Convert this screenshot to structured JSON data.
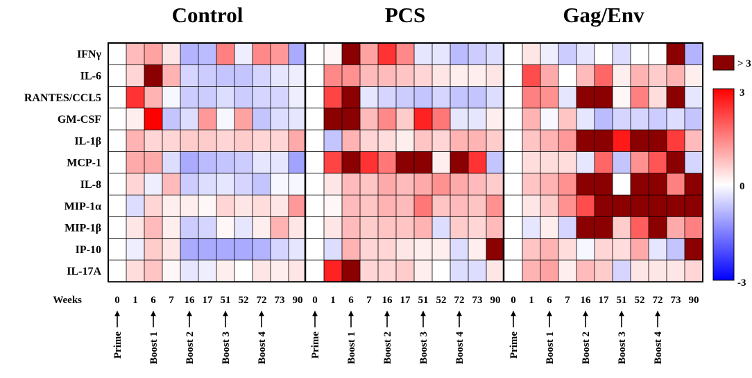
{
  "chart_data": {
    "type": "heatmap",
    "groups": [
      "Control",
      "PCS",
      "Gag/Env"
    ],
    "rows": [
      "IFNγ",
      "IL-6",
      "RANTES/CCL5",
      "GM-CSF",
      "IL-1β",
      "MCP-1",
      "IL-8",
      "MIP-1α",
      "MIP-1β",
      "IP-10",
      "IL-17A"
    ],
    "x_axis_title": "Weeks",
    "weeks": [
      "0",
      "1",
      "6",
      "7",
      "16",
      "17",
      "51",
      "52",
      "72",
      "73",
      "90"
    ],
    "events": [
      {
        "label": "Prime",
        "week": "0"
      },
      {
        "label": "Boost 1",
        "week": "6"
      },
      {
        "label": "Boost 2",
        "week": "16"
      },
      {
        "label": "Boost 3",
        "week": "51"
      },
      {
        "label": "Boost 4",
        "week": "72"
      }
    ],
    "color_scale": {
      "min": -3,
      "mid": 0,
      "max": 3,
      "low_color": "#0000ff",
      "mid_color": "#ffffff",
      "high_color": "#ff0000",
      "overflow_color": "#8b0000",
      "overflow_label": "> 3"
    },
    "legend_ticks": [
      "3",
      "0",
      "-3"
    ],
    "series": [
      {
        "name": "Control",
        "values": [
          [
            0,
            0.8,
            1.1,
            0.3,
            -0.9,
            -0.8,
            1.5,
            -0.2,
            1.4,
            1.2,
            -1.0
          ],
          [
            0,
            0.5,
            4.0,
            0.9,
            -0.5,
            -0.6,
            -0.7,
            -0.7,
            -0.5,
            -0.3,
            -0.2
          ],
          [
            0,
            2.4,
            0.9,
            -0.1,
            -0.6,
            -0.6,
            -0.4,
            -0.6,
            -0.5,
            -0.5,
            -0.2
          ],
          [
            0,
            0.2,
            3.0,
            -0.7,
            -0.4,
            1.2,
            -0.1,
            1.1,
            -0.7,
            -0.4,
            -0.3
          ],
          [
            0,
            0.9,
            0.5,
            0.5,
            0.6,
            0.6,
            0.5,
            0.6,
            0.5,
            0.5,
            1.0
          ],
          [
            0,
            1.0,
            1.0,
            -0.4,
            -1.0,
            -0.8,
            -0.7,
            -0.6,
            -0.3,
            -0.3,
            -1.1
          ],
          [
            0,
            0.5,
            -0.2,
            0.8,
            -0.6,
            -0.4,
            -0.3,
            -0.5,
            -0.7,
            -0.1,
            -0.1
          ],
          [
            0,
            -0.4,
            0.5,
            0.2,
            0.2,
            0.1,
            0.5,
            0.3,
            0.4,
            0.3,
            1.2
          ],
          [
            0,
            0.3,
            0.8,
            0.2,
            -0.6,
            -0.5,
            0.1,
            -0.3,
            0.2,
            0.9,
            0.3
          ],
          [
            0,
            -0.2,
            0.6,
            0.3,
            -1.0,
            -1.0,
            -1.0,
            -1.0,
            -0.9,
            -0.5,
            -0.3
          ],
          [
            0,
            0.4,
            0.7,
            0.1,
            -0.3,
            -0.2,
            0.2,
            0.0,
            0.3,
            0.2,
            0.3
          ]
        ]
      },
      {
        "name": "PCS",
        "values": [
          [
            0,
            0.1,
            3.5,
            1.1,
            2.4,
            1.4,
            -0.3,
            -0.3,
            -0.8,
            -0.6,
            -0.4
          ],
          [
            0,
            1.4,
            1.3,
            0.8,
            0.8,
            0.7,
            0.5,
            0.3,
            0.2,
            0.2,
            0.3
          ],
          [
            0,
            2.2,
            3.5,
            -0.3,
            -0.5,
            -0.6,
            -0.7,
            -0.5,
            -0.7,
            -0.7,
            -0.4
          ],
          [
            0,
            3.5,
            3.5,
            0.8,
            1.4,
            0.6,
            2.6,
            1.6,
            -0.3,
            -0.3,
            0.2
          ],
          [
            0,
            -0.7,
            0.9,
            0.5,
            0.4,
            0.2,
            0.7,
            0.5,
            0.9,
            0.9,
            0.6
          ],
          [
            0,
            2.2,
            3.5,
            2.4,
            1.6,
            3.5,
            3.5,
            0.2,
            3.5,
            2.4,
            -0.7
          ],
          [
            0,
            0.3,
            0.8,
            0.7,
            1.0,
            0.8,
            1.0,
            1.3,
            1.0,
            0.8,
            0.6
          ],
          [
            0,
            0.1,
            0.8,
            0.7,
            0.9,
            0.8,
            1.6,
            0.7,
            0.8,
            0.7,
            1.3
          ],
          [
            0,
            0.3,
            0.8,
            0.6,
            0.7,
            0.7,
            0.9,
            -0.4,
            0.6,
            0.5,
            0.8
          ],
          [
            0,
            -0.4,
            0.9,
            0.5,
            0.5,
            0.3,
            0.2,
            0.2,
            -0.4,
            0.2,
            3.5
          ],
          [
            0,
            2.6,
            3.5,
            0.5,
            0.5,
            0.6,
            0.2,
            0.0,
            -0.4,
            -0.4,
            0.3
          ]
        ]
      },
      {
        "name": "Gag/Env",
        "values": [
          [
            0,
            0.3,
            -0.2,
            -0.6,
            -0.3,
            0.0,
            -0.4,
            0.0,
            0.0,
            3.5,
            -0.9
          ],
          [
            0,
            2.1,
            1.0,
            0.0,
            0.8,
            1.8,
            0.2,
            0.9,
            0.6,
            0.9,
            0.2
          ],
          [
            0,
            1.5,
            1.3,
            -0.3,
            3.5,
            3.5,
            0.1,
            1.5,
            0.4,
            3.5,
            -0.3
          ],
          [
            0,
            0.9,
            -0.1,
            0.7,
            -0.3,
            -0.8,
            -0.5,
            -0.5,
            -0.6,
            -0.4,
            -0.7
          ],
          [
            0,
            0.7,
            0.9,
            1.2,
            3.5,
            3.5,
            2.7,
            3.5,
            3.5,
            2.3,
            0.8
          ],
          [
            0,
            0.4,
            0.4,
            0.4,
            -0.3,
            1.8,
            -0.7,
            1.3,
            2.0,
            3.5,
            -0.5
          ],
          [
            0,
            0.7,
            0.9,
            1.3,
            3.5,
            3.5,
            0.0,
            3.5,
            3.5,
            1.5,
            3.5
          ],
          [
            0,
            0.3,
            0.6,
            1.3,
            2.1,
            3.5,
            3.5,
            3.5,
            3.5,
            3.5,
            3.5
          ],
          [
            0,
            -0.3,
            0.2,
            -0.5,
            3.5,
            3.5,
            0.6,
            1.9,
            3.5,
            1.0,
            1.5
          ],
          [
            0,
            0.7,
            0.9,
            0.4,
            -0.1,
            0.5,
            0.4,
            1.0,
            -0.3,
            -0.7,
            3.5
          ],
          [
            0,
            0.9,
            1.1,
            0.2,
            0.8,
            0.6,
            -0.5,
            0.3,
            0.3,
            0.3,
            0.5
          ]
        ]
      }
    ]
  }
}
